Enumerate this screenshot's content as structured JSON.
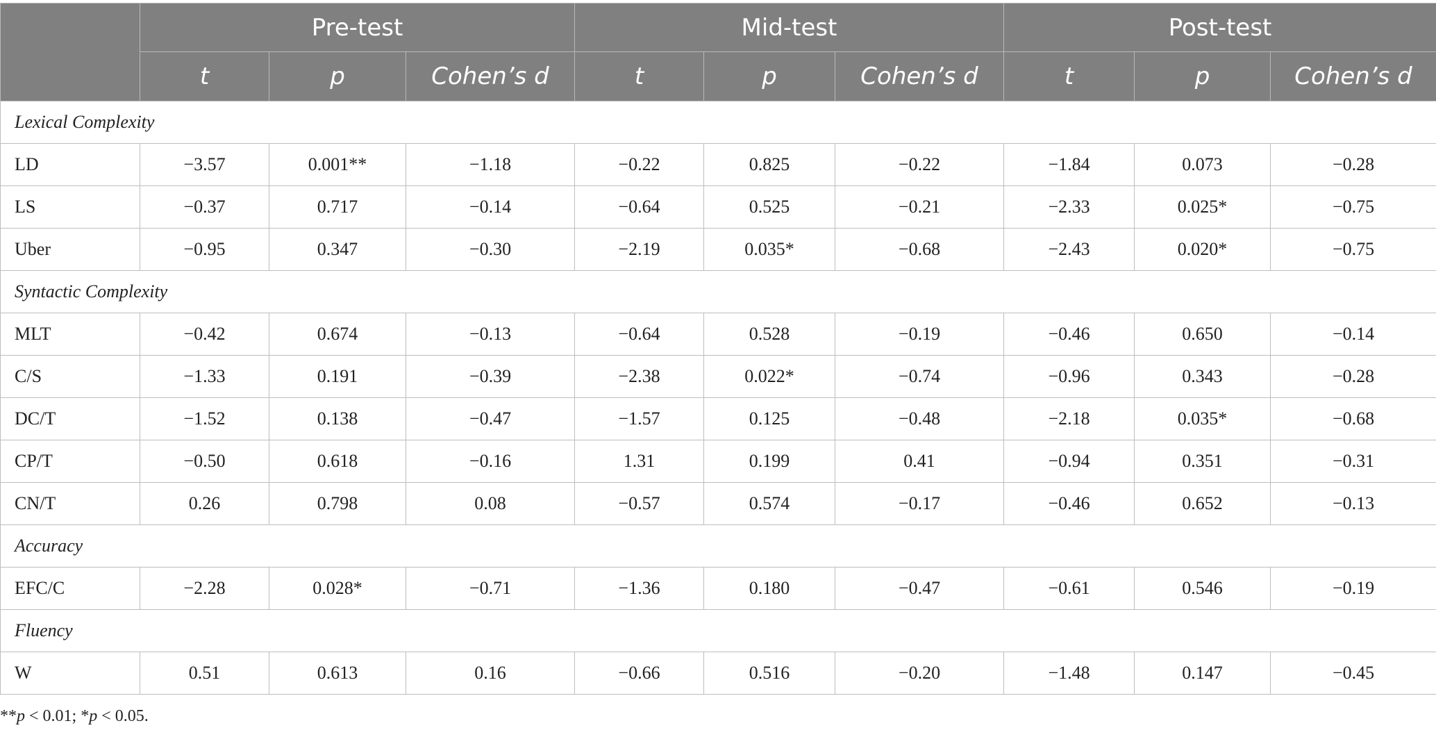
{
  "header": {
    "groups": [
      "Pre-test",
      "Mid-test",
      "Post-test"
    ],
    "subcolumns": [
      "t",
      "p",
      "Cohen’s d",
      "t",
      "p",
      "Cohen’s d",
      "t",
      "p",
      "Cohen’s d"
    ]
  },
  "body": [
    {
      "type": "section",
      "label": "Lexical Complexity"
    },
    {
      "type": "row",
      "label": "LD",
      "cells": [
        "−3.57",
        "0.001**",
        "−1.18",
        "−0.22",
        "0.825",
        "−0.22",
        "−1.84",
        "0.073",
        "−0.28"
      ]
    },
    {
      "type": "row",
      "label": "LS",
      "cells": [
        "−0.37",
        "0.717",
        "−0.14",
        "−0.64",
        "0.525",
        "−0.21",
        "−2.33",
        "0.025*",
        "−0.75"
      ]
    },
    {
      "type": "row",
      "label": "Uber",
      "cells": [
        "−0.95",
        "0.347",
        "−0.30",
        "−2.19",
        "0.035*",
        "−0.68",
        "−2.43",
        "0.020*",
        "−0.75"
      ]
    },
    {
      "type": "section",
      "label": "Syntactic Complexity"
    },
    {
      "type": "row",
      "label": "MLT",
      "cells": [
        "−0.42",
        "0.674",
        "−0.13",
        "−0.64",
        "0.528",
        "−0.19",
        "−0.46",
        "0.650",
        "−0.14"
      ]
    },
    {
      "type": "row",
      "label": "C/S",
      "cells": [
        "−1.33",
        "0.191",
        "−0.39",
        "−2.38",
        "0.022*",
        "−0.74",
        "−0.96",
        "0.343",
        "−0.28"
      ]
    },
    {
      "type": "row",
      "label": "DC/T",
      "cells": [
        "−1.52",
        "0.138",
        "−0.47",
        "−1.57",
        "0.125",
        "−0.48",
        "−2.18",
        "0.035*",
        "−0.68"
      ]
    },
    {
      "type": "row",
      "label": "CP/T",
      "cells": [
        "−0.50",
        "0.618",
        "−0.16",
        "1.31",
        "0.199",
        "0.41",
        "−0.94",
        "0.351",
        "−0.31"
      ]
    },
    {
      "type": "row",
      "label": "CN/T",
      "cells": [
        "0.26",
        "0.798",
        "0.08",
        "−0.57",
        "0.574",
        "−0.17",
        "−0.46",
        "0.652",
        "−0.13"
      ]
    },
    {
      "type": "section",
      "label": "Accuracy"
    },
    {
      "type": "row",
      "label": "EFC/C",
      "cells": [
        "−2.28",
        "0.028*",
        "−0.71",
        "−1.36",
        "0.180",
        "−0.47",
        "−0.61",
        "0.546",
        "−0.19"
      ]
    },
    {
      "type": "section",
      "label": "Fluency"
    },
    {
      "type": "row",
      "label": "W",
      "cells": [
        "0.51",
        "0.613",
        "0.16",
        "−0.66",
        "0.516",
        "−0.20",
        "−1.48",
        "0.147",
        "−0.45"
      ]
    }
  ],
  "footnote": {
    "part1_stars": "**",
    "part1_p": "p",
    "part1_rest": " < 0.01; *",
    "part2_p": "p",
    "part2_rest": " < 0.05."
  }
}
